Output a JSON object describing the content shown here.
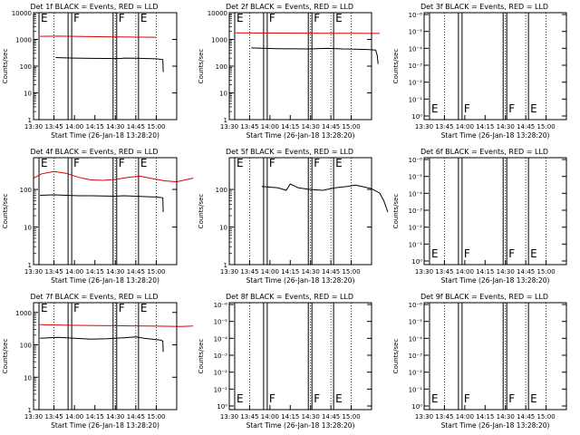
{
  "colors": {
    "events": "#000000",
    "lld": "#dd0000",
    "axis": "#000000",
    "background": "#ffffff"
  },
  "common": {
    "ylabel": "Counts/sec",
    "xlabel": "Start Time (26-Jan-18 13:28:20)",
    "xticks": [
      "13:30",
      "13:45",
      "14:00",
      "14:15",
      "14:30",
      "14:45",
      "15:00"
    ]
  },
  "chart_data": [
    {
      "type": "line",
      "title": "Det 1f BLACK = Events, RED = LLD",
      "scale": "log",
      "yticks": [
        "1",
        "10",
        "100",
        "1000",
        "10000"
      ],
      "ylim": [
        1,
        10000
      ],
      "markers": [
        {
          "text": "E",
          "x": "13:34"
        },
        {
          "text": "F",
          "x": "13:58"
        },
        {
          "text": "F",
          "x": "14:31"
        },
        {
          "text": "E",
          "x": "14:47"
        }
      ],
      "series": [
        {
          "name": "LLD",
          "color": "lld",
          "points": [
            [
              0.08,
              1300
            ],
            [
              0.3,
              1320
            ],
            [
              0.6,
              1280
            ],
            [
              0.9,
              1250
            ],
            [
              1.05,
              1230
            ],
            [
              1.3,
              1220
            ],
            [
              1.5,
              1210
            ]
          ]
        },
        {
          "name": "Events",
          "color": "events",
          "points": [
            [
              0.27,
              210
            ],
            [
              0.35,
              205
            ],
            [
              0.5,
              200
            ],
            [
              0.7,
              196
            ],
            [
              0.9,
              194
            ],
            [
              1.07,
              193
            ],
            [
              1.1,
              200
            ],
            [
              1.25,
              198
            ],
            [
              1.4,
              192
            ],
            [
              1.5,
              188
            ],
            [
              1.58,
              175
            ],
            [
              1.585,
              60
            ]
          ]
        }
      ]
    },
    {
      "type": "line",
      "title": "Det 2f BLACK = Events, RED = LLD",
      "scale": "log",
      "yticks": [
        "1",
        "10",
        "100",
        "1000",
        "10000"
      ],
      "ylim": [
        1,
        10000
      ],
      "markers": [
        {
          "text": "E",
          "x": "13:34"
        },
        {
          "text": "F",
          "x": "13:58"
        },
        {
          "text": "F",
          "x": "14:31"
        },
        {
          "text": "E",
          "x": "14:47"
        }
      ],
      "series": [
        {
          "name": "LLD",
          "color": "lld",
          "points": [
            [
              0.08,
              1750
            ],
            [
              0.3,
              1740
            ],
            [
              0.6,
              1730
            ],
            [
              0.9,
              1720
            ],
            [
              1.2,
              1700
            ],
            [
              1.5,
              1690
            ],
            [
              1.75,
              1680
            ],
            [
              1.85,
              1680
            ]
          ]
        },
        {
          "name": "Events",
          "color": "events",
          "points": [
            [
              0.27,
              480
            ],
            [
              0.4,
              470
            ],
            [
              0.6,
              450
            ],
            [
              0.8,
              445
            ],
            [
              1.0,
              440
            ],
            [
              1.07,
              450
            ],
            [
              1.2,
              460
            ],
            [
              1.3,
              455
            ],
            [
              1.4,
              440
            ],
            [
              1.55,
              430
            ],
            [
              1.7,
              420
            ],
            [
              1.8,
              400
            ],
            [
              1.82,
              250
            ],
            [
              1.83,
              120
            ]
          ]
        }
      ]
    },
    {
      "type": "line",
      "title": "Det 3f BLACK = Events, RED = LLD",
      "scale": "smalllog",
      "yticks": [
        "10⁰",
        "10⁻¹",
        "10⁻²",
        "10⁻³",
        "10⁻⁴",
        "10⁻⁵",
        "10⁻⁶"
      ],
      "markers": [
        {
          "text": "E",
          "x": "13:34"
        },
        {
          "text": "F",
          "x": "13:58"
        },
        {
          "text": "F",
          "x": "14:31"
        },
        {
          "text": "E",
          "x": "14:47"
        }
      ],
      "series": []
    },
    {
      "type": "line",
      "title": "Det 4f BLACK = Events, RED = LLD",
      "scale": "log",
      "yticks": [
        "1",
        "10",
        "100"
      ],
      "ylim": [
        1,
        700
      ],
      "markers": [
        {
          "text": "E",
          "x": "13:34"
        },
        {
          "text": "F",
          "x": "13:58"
        },
        {
          "text": "F",
          "x": "14:31"
        },
        {
          "text": "E",
          "x": "14:47"
        }
      ],
      "series": [
        {
          "name": "LLD",
          "color": "lld",
          "points": [
            [
              0.0,
              200
            ],
            [
              0.1,
              260
            ],
            [
              0.25,
              300
            ],
            [
              0.4,
              270
            ],
            [
              0.55,
              210
            ],
            [
              0.7,
              180
            ],
            [
              0.85,
              175
            ],
            [
              1.0,
              185
            ],
            [
              1.15,
              210
            ],
            [
              1.3,
              225
            ],
            [
              1.45,
              195
            ],
            [
              1.6,
              170
            ],
            [
              1.75,
              160
            ],
            [
              1.85,
              180
            ],
            [
              1.95,
              200
            ]
          ]
        },
        {
          "name": "Events",
          "color": "events",
          "points": [
            [
              0.08,
              70
            ],
            [
              0.25,
              72
            ],
            [
              0.4,
              70
            ],
            [
              0.55,
              68
            ],
            [
              0.7,
              68
            ],
            [
              0.85,
              67
            ],
            [
              1.0,
              66
            ],
            [
              1.1,
              68
            ],
            [
              1.25,
              66
            ],
            [
              1.4,
              64
            ],
            [
              1.5,
              63
            ],
            [
              1.58,
              60
            ],
            [
              1.585,
              25
            ]
          ]
        }
      ]
    },
    {
      "type": "line",
      "title": "Det 5f BLACK = Events, RED = LLD",
      "scale": "log",
      "yticks": [
        "1",
        "10",
        "100"
      ],
      "ylim": [
        1,
        700
      ],
      "markers": [
        {
          "text": "E",
          "x": "13:34"
        },
        {
          "text": "F",
          "x": "13:58"
        },
        {
          "text": "F",
          "x": "14:31"
        },
        {
          "text": "E",
          "x": "14:47"
        }
      ],
      "series": [
        {
          "name": "Events",
          "color": "events",
          "points": [
            [
              0.4,
              120
            ],
            [
              0.5,
              115
            ],
            [
              0.6,
              110
            ],
            [
              0.7,
              95
            ],
            [
              0.75,
              140
            ],
            [
              0.85,
              110
            ],
            [
              1.0,
              100
            ],
            [
              1.15,
              95
            ],
            [
              1.3,
              110
            ],
            [
              1.45,
              120
            ],
            [
              1.55,
              130
            ],
            [
              1.65,
              118
            ],
            [
              1.75,
              105
            ],
            [
              1.85,
              80
            ],
            [
              1.9,
              50
            ],
            [
              1.95,
              25
            ]
          ]
        }
      ]
    },
    {
      "type": "line",
      "title": "Det 6f BLACK = Events, RED = LLD",
      "scale": "smalllog",
      "yticks": [
        "10⁰",
        "10⁻¹",
        "10⁻²",
        "10⁻³",
        "10⁻⁴",
        "10⁻⁵",
        "10⁻⁶"
      ],
      "markers": [
        {
          "text": "E",
          "x": "13:34"
        },
        {
          "text": "F",
          "x": "13:58"
        },
        {
          "text": "F",
          "x": "14:31"
        },
        {
          "text": "E",
          "x": "14:47"
        }
      ],
      "series": []
    },
    {
      "type": "line",
      "title": "Det 7f BLACK = Events, RED = LLD",
      "scale": "log",
      "yticks": [
        "1",
        "10",
        "100",
        "1000"
      ],
      "ylim": [
        1,
        2000
      ],
      "markers": [
        {
          "text": "E",
          "x": "13:34"
        },
        {
          "text": "F",
          "x": "13:58"
        },
        {
          "text": "F",
          "x": "14:31"
        },
        {
          "text": "E",
          "x": "14:47"
        }
      ],
      "series": [
        {
          "name": "LLD",
          "color": "lld",
          "points": [
            [
              0.08,
              420
            ],
            [
              0.3,
              410
            ],
            [
              0.5,
              400
            ],
            [
              0.8,
              395
            ],
            [
              1.0,
              390
            ],
            [
              1.2,
              385
            ],
            [
              1.4,
              380
            ],
            [
              1.6,
              375
            ],
            [
              1.8,
              370
            ],
            [
              1.95,
              380
            ]
          ]
        },
        {
          "name": "Events",
          "color": "events",
          "points": [
            [
              0.08,
              160
            ],
            [
              0.3,
              170
            ],
            [
              0.5,
              160
            ],
            [
              0.7,
              150
            ],
            [
              0.9,
              155
            ],
            [
              1.1,
              165
            ],
            [
              1.25,
              175
            ],
            [
              1.35,
              160
            ],
            [
              1.45,
              150
            ],
            [
              1.55,
              140
            ],
            [
              1.58,
              130
            ],
            [
              1.585,
              60
            ]
          ]
        }
      ]
    },
    {
      "type": "line",
      "title": "Det 8f BLACK = Events, RED = LLD",
      "scale": "smalllog",
      "yticks": [
        "10⁰",
        "10⁻¹",
        "10⁻²",
        "10⁻³",
        "10⁻⁴",
        "10⁻⁵",
        "10⁻⁶"
      ],
      "markers": [
        {
          "text": "E",
          "x": "13:34"
        },
        {
          "text": "F",
          "x": "13:58"
        },
        {
          "text": "F",
          "x": "14:31"
        },
        {
          "text": "E",
          "x": "14:47"
        }
      ],
      "series": []
    },
    {
      "type": "line",
      "title": "Det 9f BLACK = Events, RED = LLD",
      "scale": "smalllog",
      "yticks": [
        "10⁰",
        "10⁻¹",
        "10⁻²",
        "10⁻³",
        "10⁻⁴",
        "10⁻⁵",
        "10⁻⁶"
      ],
      "markers": [
        {
          "text": "E",
          "x": "13:34"
        },
        {
          "text": "F",
          "x": "13:58"
        },
        {
          "text": "F",
          "x": "14:31"
        },
        {
          "text": "E",
          "x": "14:47"
        }
      ],
      "series": []
    }
  ]
}
